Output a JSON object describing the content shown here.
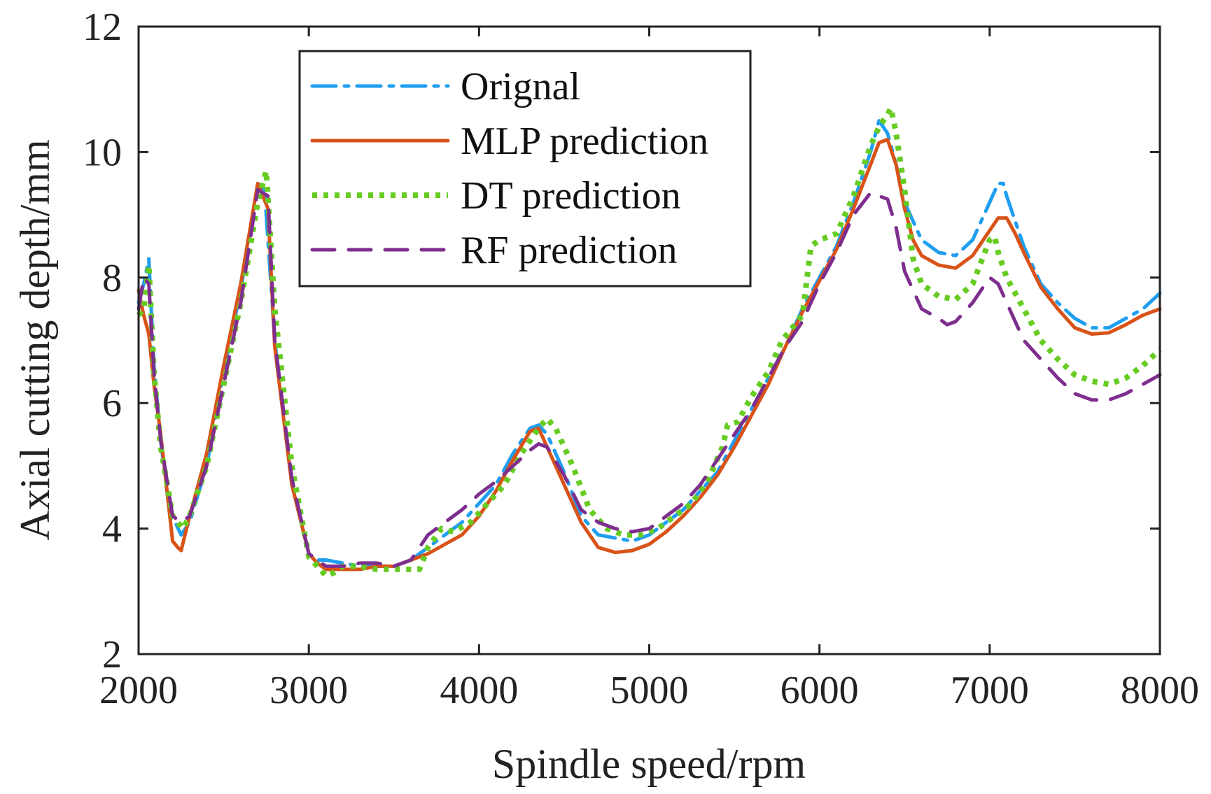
{
  "chart_data": {
    "type": "line",
    "title": "",
    "xlabel": "Spindle speed/rpm",
    "ylabel": "Axial cutting depth/mm",
    "xlim": [
      2000,
      8000
    ],
    "ylim": [
      2,
      12
    ],
    "xticks": [
      2000,
      3000,
      4000,
      5000,
      6000,
      7000,
      8000
    ],
    "yticks": [
      2,
      4,
      6,
      8,
      10,
      12
    ],
    "xtick_labels": [
      "2000",
      "3000",
      "4000",
      "5000",
      "6000",
      "7000",
      "8000"
    ],
    "ytick_labels": [
      "2",
      "4",
      "6",
      "8",
      "10",
      "12"
    ],
    "grid": false,
    "legend_position": "top-center",
    "series": [
      {
        "name": "Orignal",
        "color": "#1f9ef0",
        "style": "dashdot",
        "x": [
          2000,
          2030,
          2060,
          2090,
          2130,
          2180,
          2250,
          2300,
          2400,
          2500,
          2600,
          2700,
          2740,
          2800,
          2900,
          3000,
          3050,
          3100,
          3200,
          3300,
          3400,
          3500,
          3600,
          3700,
          3800,
          3900,
          4000,
          4100,
          4200,
          4300,
          4350,
          4400,
          4500,
          4600,
          4700,
          4800,
          4900,
          5000,
          5100,
          5200,
          5300,
          5400,
          5500,
          5600,
          5700,
          5800,
          5900,
          6000,
          6100,
          6200,
          6300,
          6350,
          6400,
          6450,
          6500,
          6550,
          6600,
          6700,
          6800,
          6900,
          7000,
          7050,
          7080,
          7100,
          7150,
          7200,
          7300,
          7400,
          7500,
          7600,
          7700,
          7800,
          7900,
          8000
        ],
        "values": [
          7.6,
          7.9,
          8.3,
          6.6,
          5.4,
          4.3,
          3.9,
          4.1,
          5.0,
          6.5,
          7.8,
          9.5,
          9.4,
          7.0,
          4.7,
          3.6,
          3.5,
          3.5,
          3.45,
          3.4,
          3.4,
          3.4,
          3.5,
          3.7,
          3.9,
          4.1,
          4.4,
          4.7,
          5.2,
          5.6,
          5.65,
          5.5,
          4.9,
          4.2,
          3.9,
          3.85,
          3.8,
          3.9,
          4.1,
          4.3,
          4.6,
          4.9,
          5.4,
          5.9,
          6.4,
          6.9,
          7.5,
          8.0,
          8.5,
          9.2,
          10.0,
          10.5,
          10.3,
          9.8,
          9.2,
          8.9,
          8.6,
          8.4,
          8.35,
          8.6,
          9.2,
          9.5,
          9.5,
          9.3,
          8.9,
          8.5,
          7.9,
          7.6,
          7.35,
          7.2,
          7.2,
          7.35,
          7.5,
          7.75
        ]
      },
      {
        "name": "MLP prediction",
        "color": "#d95319",
        "style": "solid",
        "x": [
          2000,
          2030,
          2060,
          2090,
          2130,
          2200,
          2230,
          2250,
          2300,
          2400,
          2500,
          2600,
          2700,
          2760,
          2800,
          2900,
          3000,
          3050,
          3100,
          3200,
          3300,
          3400,
          3500,
          3600,
          3700,
          3800,
          3900,
          4000,
          4100,
          4200,
          4300,
          4350,
          4400,
          4500,
          4600,
          4700,
          4800,
          4900,
          5000,
          5100,
          5200,
          5300,
          5400,
          5500,
          5600,
          5700,
          5800,
          5900,
          6000,
          6100,
          6200,
          6300,
          6350,
          6400,
          6450,
          6500,
          6550,
          6600,
          6700,
          6800,
          6900,
          7000,
          7050,
          7100,
          7150,
          7200,
          7300,
          7400,
          7500,
          7600,
          7700,
          7800,
          7900,
          8000
        ],
        "values": [
          7.8,
          7.4,
          7.1,
          6.3,
          5.5,
          3.8,
          3.7,
          3.65,
          4.2,
          5.2,
          6.6,
          7.9,
          9.5,
          9.1,
          6.9,
          4.7,
          3.6,
          3.45,
          3.35,
          3.35,
          3.35,
          3.4,
          3.4,
          3.5,
          3.6,
          3.75,
          3.9,
          4.2,
          4.6,
          5.1,
          5.55,
          5.6,
          5.3,
          4.7,
          4.1,
          3.7,
          3.62,
          3.65,
          3.75,
          3.95,
          4.2,
          4.5,
          4.85,
          5.3,
          5.8,
          6.3,
          6.9,
          7.45,
          7.95,
          8.45,
          9.1,
          9.8,
          10.15,
          10.2,
          9.8,
          9.1,
          8.6,
          8.35,
          8.2,
          8.15,
          8.35,
          8.75,
          8.95,
          8.95,
          8.7,
          8.4,
          7.85,
          7.5,
          7.2,
          7.1,
          7.12,
          7.25,
          7.4,
          7.5
        ]
      },
      {
        "name": "DT prediction",
        "color": "#66cc22",
        "style": "dotted",
        "x": [
          2000,
          2030,
          2060,
          2090,
          2130,
          2200,
          2260,
          2300,
          2400,
          2500,
          2600,
          2700,
          2750,
          2800,
          2900,
          3000,
          3100,
          3150,
          3200,
          3300,
          3400,
          3500,
          3650,
          3700,
          3780,
          3850,
          3950,
          4050,
          4150,
          4250,
          4350,
          4400,
          4450,
          4550,
          4650,
          4750,
          4850,
          4950,
          5050,
          5150,
          5250,
          5350,
          5430,
          5460,
          5520,
          5600,
          5700,
          5780,
          5900,
          5950,
          6000,
          6100,
          6200,
          6300,
          6350,
          6400,
          6420,
          6450,
          6500,
          6550,
          6600,
          6700,
          6800,
          6900,
          7000,
          7030,
          7050,
          7100,
          7200,
          7300,
          7400,
          7500,
          7600,
          7700,
          7800,
          7900,
          8000
        ],
        "values": [
          7.4,
          7.5,
          8.2,
          6.5,
          5.3,
          4.2,
          4.0,
          4.2,
          5.0,
          6.3,
          7.6,
          9.2,
          9.7,
          7.5,
          5.0,
          3.55,
          3.25,
          3.3,
          3.4,
          3.4,
          3.35,
          3.35,
          3.35,
          3.7,
          4.0,
          3.95,
          4.1,
          4.4,
          4.7,
          5.2,
          5.6,
          5.75,
          5.6,
          5.0,
          4.3,
          4.0,
          3.9,
          3.9,
          4.0,
          4.2,
          4.4,
          4.8,
          5.3,
          5.65,
          5.7,
          6.1,
          6.5,
          7.0,
          7.4,
          8.5,
          8.6,
          8.7,
          9.3,
          10.1,
          10.4,
          10.6,
          10.7,
          10.3,
          9.4,
          8.3,
          7.9,
          7.7,
          7.65,
          7.9,
          8.6,
          8.65,
          8.4,
          8.0,
          7.5,
          7.0,
          6.7,
          6.45,
          6.35,
          6.3,
          6.4,
          6.6,
          6.85
        ]
      },
      {
        "name": "RF prediction",
        "color": "#7e2f8e",
        "style": "dashed",
        "x": [
          2000,
          2030,
          2060,
          2090,
          2130,
          2200,
          2250,
          2300,
          2400,
          2500,
          2600,
          2700,
          2760,
          2800,
          2900,
          3000,
          3100,
          3200,
          3300,
          3400,
          3500,
          3600,
          3700,
          3800,
          3900,
          4000,
          4100,
          4200,
          4300,
          4350,
          4400,
          4500,
          4600,
          4700,
          4800,
          4900,
          5000,
          5100,
          5200,
          5300,
          5400,
          5500,
          5600,
          5700,
          5800,
          5900,
          6000,
          6100,
          6200,
          6300,
          6350,
          6400,
          6450,
          6500,
          6600,
          6700,
          6750,
          6800,
          6900,
          7000,
          7050,
          7100,
          7200,
          7300,
          7400,
          7500,
          7600,
          7700,
          7800,
          7900,
          8000
        ],
        "values": [
          7.5,
          8.0,
          7.9,
          6.5,
          5.4,
          4.2,
          4.1,
          4.2,
          5.0,
          6.3,
          7.6,
          9.4,
          9.3,
          7.0,
          4.8,
          3.6,
          3.4,
          3.4,
          3.45,
          3.45,
          3.4,
          3.5,
          3.9,
          4.1,
          4.3,
          4.55,
          4.75,
          5.0,
          5.25,
          5.35,
          5.3,
          4.85,
          4.3,
          4.1,
          4.0,
          3.95,
          4.0,
          4.2,
          4.4,
          4.7,
          5.1,
          5.5,
          5.9,
          6.4,
          6.9,
          7.3,
          7.9,
          8.4,
          9.0,
          9.35,
          9.3,
          9.25,
          8.8,
          8.1,
          7.5,
          7.35,
          7.25,
          7.3,
          7.6,
          8.0,
          7.9,
          7.6,
          7.0,
          6.7,
          6.4,
          6.15,
          6.05,
          6.05,
          6.15,
          6.3,
          6.45
        ]
      }
    ]
  }
}
